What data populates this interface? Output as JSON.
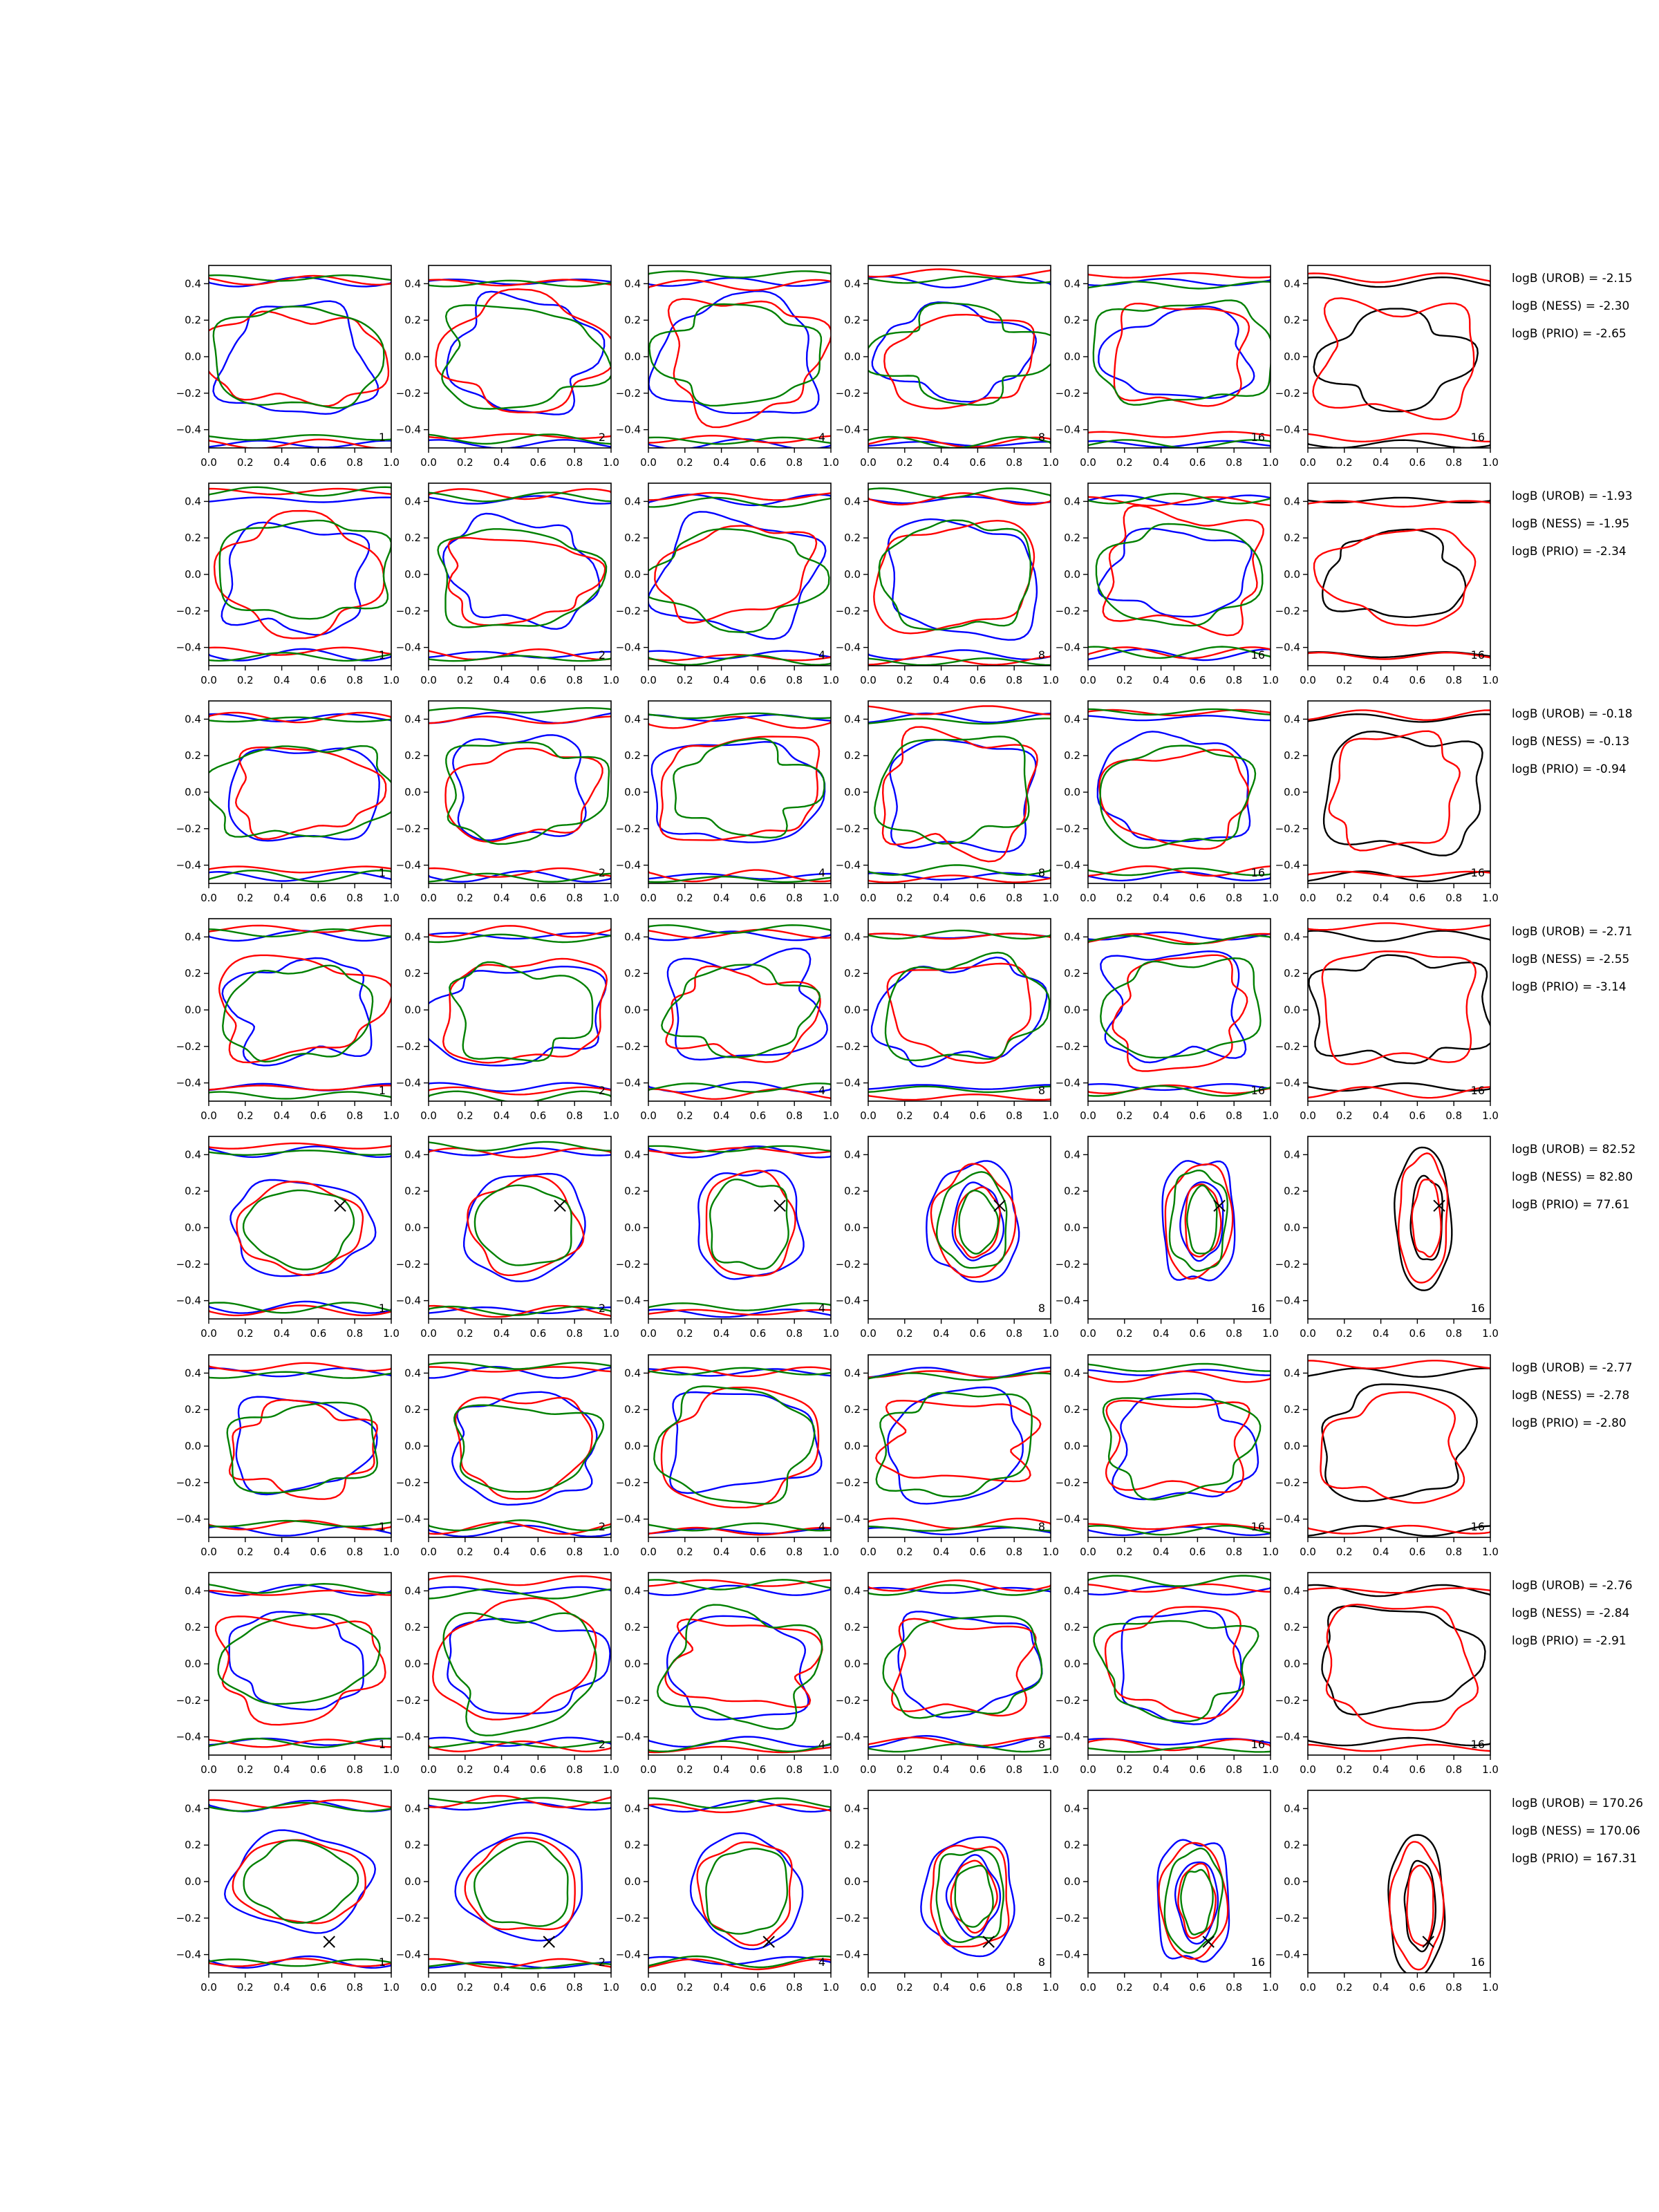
{
  "colors": {
    "blue": "#0000ff",
    "red": "#ff0000",
    "green": "#008000",
    "black": "#000000",
    "axes": "#000000",
    "background": "#ffffff"
  },
  "chart_data": {
    "type": "contour-grid",
    "grid": {
      "rows": 8,
      "cols": 6
    },
    "xlim": [
      0.0,
      1.0
    ],
    "ylim": [
      -0.5,
      0.5
    ],
    "x_ticks": [
      "0.0",
      "0.2",
      "0.4",
      "0.6",
      "0.8",
      "1.0"
    ],
    "y_ticks": [
      "0.4",
      "0.2",
      "0.0",
      "−0.2",
      "−0.4"
    ],
    "x_tick_values": [
      0.0,
      0.2,
      0.4,
      0.6,
      0.8,
      1.0
    ],
    "y_tick_values": [
      0.4,
      0.2,
      0.0,
      -0.2,
      -0.4
    ],
    "panel_labels": [
      "1",
      "2",
      "4",
      "8",
      "16",
      "16"
    ],
    "colored_column_palette": [
      "blue",
      "red",
      "green"
    ],
    "last_column_palette": [
      "black",
      "red"
    ],
    "rows": [
      {
        "row": 1,
        "logB": [
          "logB (UROB) = -2.15",
          "logB (NESS) = -2.30",
          "logB (PRIO) = -2.65"
        ],
        "marker": null
      },
      {
        "row": 2,
        "logB": [
          "logB (UROB) = -1.93",
          "logB (NESS) = -1.95",
          "logB (PRIO) = -2.34"
        ],
        "marker": null
      },
      {
        "row": 3,
        "logB": [
          "logB (UROB) = -0.18",
          "logB (NESS) = -0.13",
          "logB (PRIO) = -0.94"
        ],
        "marker": null
      },
      {
        "row": 4,
        "logB": [
          "logB (UROB) = -2.71",
          "logB (NESS) = -2.55",
          "logB (PRIO) = -3.14"
        ],
        "marker": null
      },
      {
        "row": 5,
        "logB": [
          "logB (UROB) = 82.52",
          "logB (NESS) = 82.80",
          "logB (PRIO) = 77.61"
        ],
        "marker": {
          "x": 0.72,
          "y": 0.12
        }
      },
      {
        "row": 6,
        "logB": [
          "logB (UROB) = -2.77",
          "logB (NESS) = -2.78",
          "logB (PRIO) = -2.80"
        ],
        "marker": null
      },
      {
        "row": 7,
        "logB": [
          "logB (UROB) = -2.76",
          "logB (NESS) = -2.84",
          "logB (PRIO) = -2.91"
        ],
        "marker": null
      },
      {
        "row": 8,
        "logB": [
          "logB (UROB) = 170.26",
          "logB (NESS) = 170.06",
          "logB (PRIO) = 167.31"
        ],
        "marker": {
          "x": 0.66,
          "y": -0.33
        }
      }
    ]
  }
}
